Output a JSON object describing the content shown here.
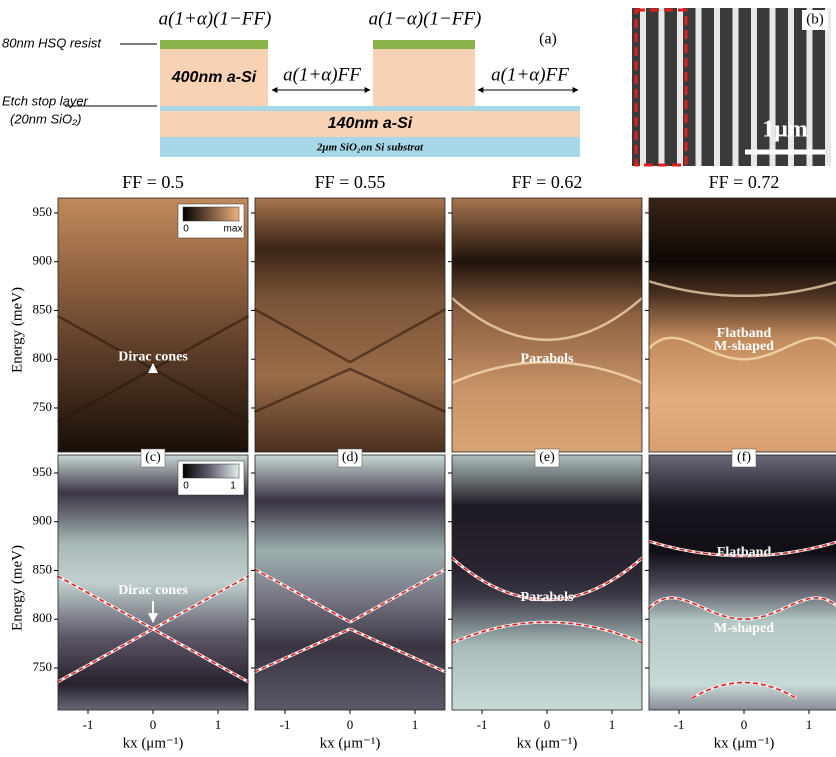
{
  "schematic": {
    "label": "(a)",
    "dims": [
      "a(1+α)(1−FF)",
      "a(1−α)(1−FF)",
      "a(1+α)FF",
      "a(1+α)FF"
    ],
    "resist": "80nm HSQ resist",
    "pillar": "400nm a-Si",
    "etch_stop": "Etch stop layer",
    "etch_stop_detail": "(20nm SiO₂)",
    "slab": "140nm a-Si",
    "substrate": "2μm SiO₂on Si substrat"
  },
  "sem": {
    "label": "(b)",
    "scale_bar": "1μm"
  },
  "y_axis": {
    "label": "Energy (meV)",
    "ticks": [
      750,
      800,
      850,
      900,
      950
    ]
  },
  "x_axis": {
    "label": "kx (μm⁻¹)",
    "ticks": [
      -1,
      0,
      1
    ]
  },
  "colorbars": {
    "experiment": {
      "min": "0",
      "max": "max"
    },
    "simulation": {
      "min": "0",
      "max": "1"
    }
  },
  "panels": [
    {
      "title": "FF = 0.5",
      "experiment": {
        "annotations": [
          "Dirac cones"
        ]
      },
      "simulation": {
        "label": "(c)",
        "annotations": [
          "Dirac cones"
        ]
      }
    },
    {
      "title": "FF = 0.55",
      "experiment": {
        "annotations": []
      },
      "simulation": {
        "label": "(d)",
        "annotations": []
      }
    },
    {
      "title": "FF = 0.62",
      "experiment": {
        "annotations": [
          "Parabols"
        ]
      },
      "simulation": {
        "label": "(e)",
        "annotations": [
          "Parabols"
        ]
      }
    },
    {
      "title": "FF = 0.72",
      "experiment": {
        "annotations": [
          "Flatband",
          "M-shaped"
        ]
      },
      "simulation": {
        "label": "(f)",
        "annotations": [
          "Flatband",
          "M-shaped"
        ]
      }
    }
  ]
}
